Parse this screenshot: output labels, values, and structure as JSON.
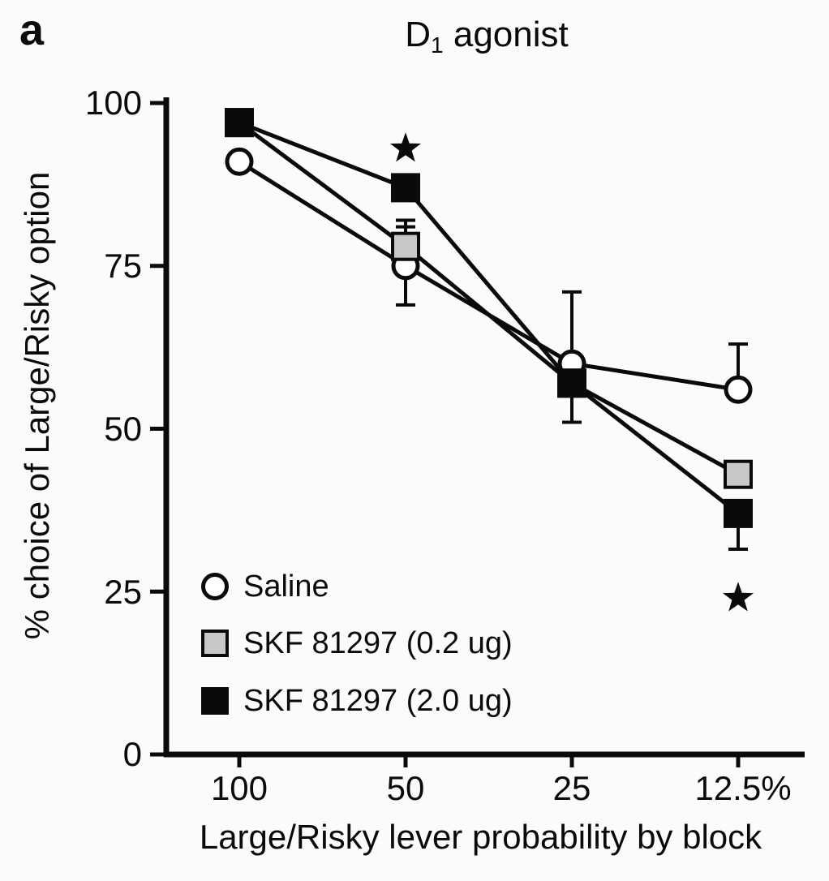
{
  "figure": {
    "panel_label": "a"
  },
  "chart_data": {
    "type": "line",
    "title": "D1 agonist",
    "title_parts": {
      "main": "D",
      "sub": "1",
      "rest": " agonist"
    },
    "xlabel": "Large/Risky lever probability by block",
    "ylabel": "% choice of Large/Risky option",
    "x_categories": [
      "100",
      "50",
      "25",
      "12.5%"
    ],
    "ytick_labels": [
      "100",
      "75",
      "50",
      "25",
      "0"
    ],
    "yticks": [
      100,
      75,
      50,
      25,
      0
    ],
    "ylim": [
      0,
      100
    ],
    "grid": false,
    "legend_position": "inside lower-left",
    "series": [
      {
        "name": "Saline",
        "marker": "open-circle",
        "values": [
          91,
          75,
          60,
          56
        ],
        "err_up": [
          0,
          6,
          11,
          7
        ],
        "err_down": [
          0,
          6,
          0,
          0
        ]
      },
      {
        "name": "SKF 81297 (0.2 ug)",
        "marker": "gray-square",
        "values": [
          97,
          78,
          57,
          43
        ],
        "err_up": [
          0,
          4,
          0,
          0
        ],
        "err_down": [
          0,
          0,
          0,
          0
        ]
      },
      {
        "name": "SKF 81297 (2.0 ug)",
        "marker": "black-square",
        "values": [
          97,
          87,
          57,
          37
        ],
        "err_up": [
          0,
          0,
          0,
          0
        ],
        "err_down": [
          0,
          0,
          6,
          5.5
        ]
      }
    ],
    "annotations": [
      {
        "type": "significance-star",
        "x_index": 1,
        "y_value": 93
      },
      {
        "type": "significance-star",
        "x_index": 3,
        "y_value": 24
      }
    ],
    "colors": {
      "line": "#0a0a0a",
      "gray_fill": "#c8c8c8",
      "open_fill": "#ffffff",
      "background": "#fbfbfb"
    }
  }
}
